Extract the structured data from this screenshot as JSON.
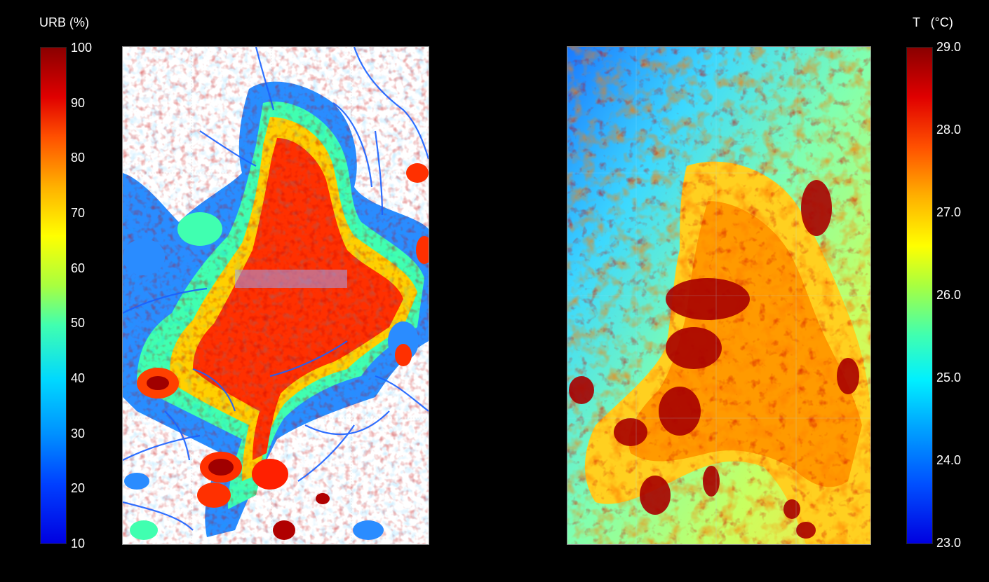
{
  "left_panel": {
    "title": "URB (%)",
    "colorbar_ticks": [
      "100",
      "90",
      "80",
      "70",
      "60",
      "50",
      "40",
      "30",
      "20",
      "10"
    ],
    "range": [
      10,
      100
    ],
    "colormap": [
      "#0000ff",
      "#00a0ff",
      "#00ffff",
      "#40ff80",
      "#ffff00",
      "#ff8000",
      "#ff0000",
      "#800000"
    ],
    "background": "#ffffff"
  },
  "right_panel": {
    "title": "T   (°C)",
    "colorbar_ticks": [
      "29.0",
      "28.0",
      "27.0",
      "26.0",
      "25.0",
      "24.0",
      "23.0"
    ],
    "range": [
      23.0,
      29.0
    ],
    "colormap": [
      "#0000ff",
      "#00a0ff",
      "#00ffff",
      "#40ff80",
      "#ffff00",
      "#ff8000",
      "#ff0000",
      "#800000"
    ]
  }
}
